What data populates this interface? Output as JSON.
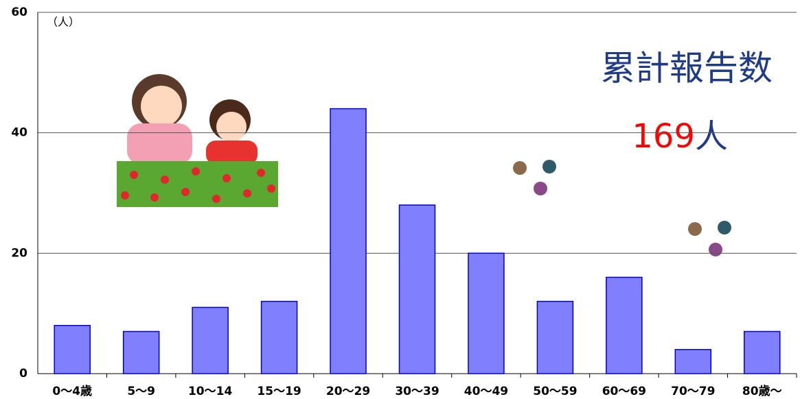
{
  "chart_data": {
    "type": "bar",
    "y_unit": "（人）",
    "annotation": "累計報告数",
    "total_value": 169,
    "total_unit": "人",
    "categories": [
      "0〜4歳",
      "5〜9",
      "10〜14",
      "15〜19",
      "20〜29",
      "30〜39",
      "40〜49",
      "50〜59",
      "60〜69",
      "70〜79",
      "80歳〜"
    ],
    "values": [
      8,
      7,
      11,
      12,
      44,
      28,
      20,
      12,
      16,
      4,
      7
    ],
    "color": "#8080ff",
    "ylim": [
      0,
      60
    ],
    "yticks": [
      0,
      20,
      40,
      60
    ],
    "grid": true
  }
}
